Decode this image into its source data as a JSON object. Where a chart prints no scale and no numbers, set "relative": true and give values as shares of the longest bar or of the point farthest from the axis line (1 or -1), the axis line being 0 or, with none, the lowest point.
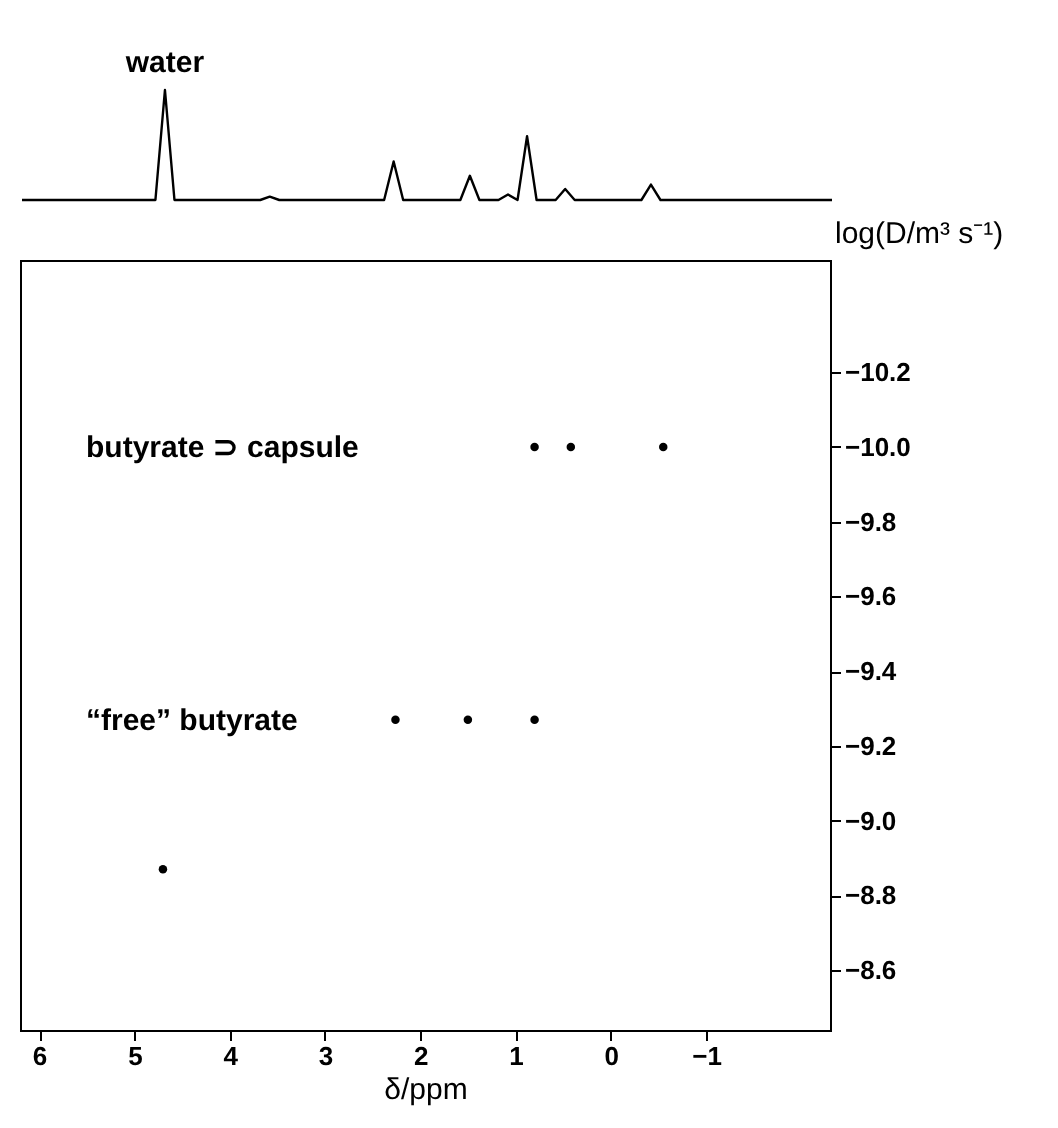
{
  "chart_data": [
    {
      "type": "line",
      "relative": true,
      "color": "#000000",
      "categories": [
        null,
        null,
        null,
        null,
        null,
        null,
        null,
        null,
        null,
        null,
        null,
        null,
        null,
        null,
        null,
        null,
        null,
        null,
        null,
        null,
        null,
        null,
        null,
        null,
        null,
        null,
        null,
        null,
        null,
        null,
        null,
        null,
        null,
        null,
        null,
        null,
        null,
        null,
        null,
        null,
        null,
        null,
        null,
        null,
        null,
        null,
        null,
        null,
        null,
        null,
        null,
        null,
        null,
        null,
        null,
        null,
        null,
        null,
        null,
        null,
        null,
        null,
        null,
        null,
        null,
        null,
        null,
        null,
        null,
        null,
        null,
        null,
        null,
        null,
        null,
        null,
        null,
        null,
        null,
        null,
        null,
        null,
        null,
        null,
        null,
        null
      ],
      "values": [
        0,
        0,
        0,
        0,
        0,
        0,
        0,
        0,
        0,
        0,
        0,
        0,
        0,
        0,
        0,
        1,
        0,
        0,
        0,
        0,
        0,
        0,
        0,
        0,
        0,
        0,
        0.03,
        0,
        0,
        0,
        0,
        0,
        0,
        0,
        0,
        0,
        0,
        0,
        0,
        0.35,
        0,
        0,
        0,
        0,
        0,
        0,
        0,
        0.22,
        0,
        0,
        0,
        0.05,
        0,
        0.58,
        0,
        0,
        0,
        0.1,
        0,
        0,
        0,
        0,
        0,
        0,
        0,
        0,
        0.14,
        0,
        0,
        0,
        0,
        0,
        0,
        0,
        0,
        0,
        0,
        0,
        0,
        0,
        0,
        0,
        0,
        0,
        0,
        0
      ],
      "annotations": [
        "water"
      ]
    },
    {
      "type": "scatter",
      "marker": "circle",
      "color": "#000000",
      "xlabel": "δ/ppm",
      "ylabel": "log(D/m³ s⁻¹)",
      "xlim": [
        6.2,
        -2.3
      ],
      "ylim": [
        -8.44,
        -10.5
      ],
      "xticks": [
        6,
        5,
        4,
        3,
        2,
        1,
        0,
        {
          "value": -1,
          "label": "−1"
        }
      ],
      "yticks": [
        {
          "value": -10.2,
          "label": "−10.2"
        },
        {
          "value": -10.0,
          "label": "−10.0"
        },
        {
          "value": -9.8,
          "label": "−9.8"
        },
        {
          "value": -9.6,
          "label": "−9.6"
        },
        {
          "value": -9.4,
          "label": "−9.4"
        },
        {
          "value": -9.2,
          "label": "−9.2"
        },
        {
          "value": -9.0,
          "label": "−9.0"
        },
        {
          "value": -8.8,
          "label": "−8.8"
        },
        {
          "value": -8.6,
          "label": "−8.6"
        }
      ],
      "x": [
        0.8,
        0.42,
        -0.55,
        2.26,
        1.5,
        0.8,
        4.7
      ],
      "values": [
        -10.0,
        -10.0,
        -10.0,
        -9.27,
        -9.27,
        -9.27,
        -8.87
      ],
      "annotations": [
        "butyrate ⊃ capsule",
        "“free” butyrate"
      ]
    }
  ]
}
